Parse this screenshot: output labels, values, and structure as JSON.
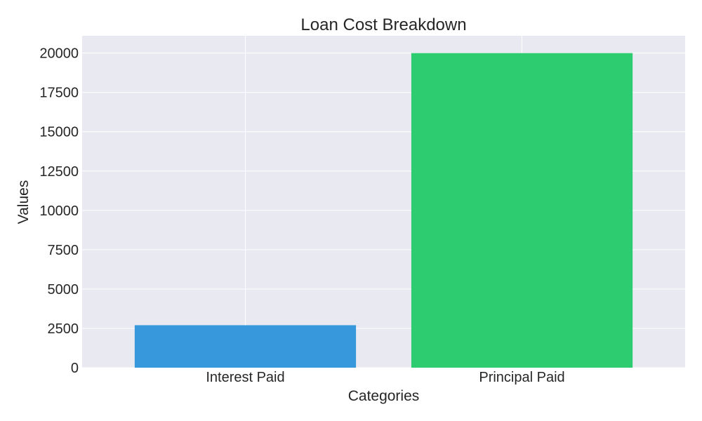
{
  "chart_data": {
    "type": "bar",
    "title": "Loan Cost Breakdown",
    "xlabel": "Categories",
    "ylabel": "Values",
    "categories": [
      "Interest Paid",
      "Principal Paid"
    ],
    "values": [
      2700,
      20000
    ],
    "colors": [
      "#3799db",
      "#2ecc71"
    ],
    "ylim": [
      0,
      21100
    ],
    "yticks": [
      0,
      2500,
      5000,
      7500,
      10000,
      12500,
      15000,
      17500,
      20000
    ],
    "grid": true,
    "background": "#e9e9f1"
  }
}
